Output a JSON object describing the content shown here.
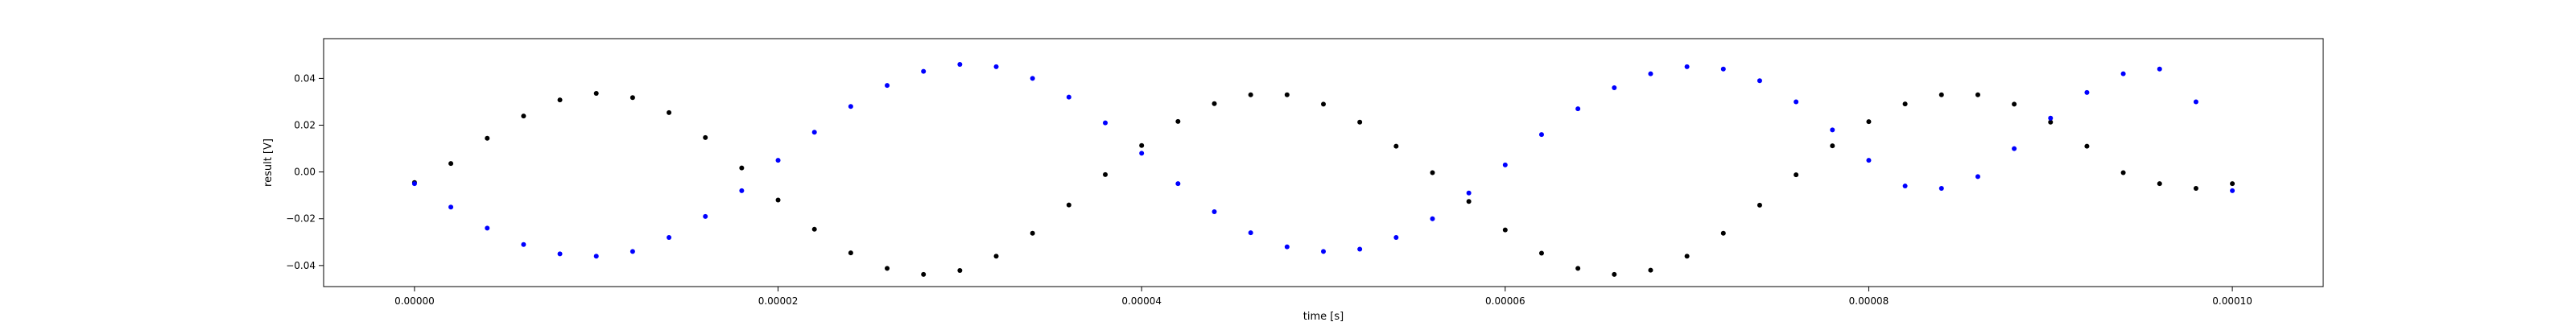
{
  "chart_data": {
    "type": "scatter",
    "title": "",
    "xlabel": "time [s]",
    "ylabel": "result [V]",
    "xlim": [
      -5e-06,
      0.000105
    ],
    "ylim": [
      -0.049,
      0.057
    ],
    "x_ticks": [
      0,
      2e-05,
      4e-05,
      6e-05,
      8e-05,
      0.0001
    ],
    "x_tick_labels": [
      "0.00000",
      "0.00002",
      "0.00004",
      "0.00006",
      "0.00008",
      "0.00010"
    ],
    "y_ticks": [
      -0.04,
      -0.02,
      0.0,
      0.02,
      0.04
    ],
    "y_tick_labels": [
      "−0.04",
      "−0.02",
      "0.00",
      "0.02",
      "0.04"
    ],
    "grid": false,
    "legend": false,
    "series": [
      {
        "color": "#000000",
        "marker": "dot",
        "x": [
          0,
          2e-06,
          4e-06,
          6e-06,
          8e-06,
          1e-05,
          1.2e-05,
          1.4e-05,
          1.6e-05,
          1.8e-05,
          2e-05,
          2.2e-05,
          2.4e-05,
          2.6e-05,
          2.8e-05,
          3e-05,
          3.2e-05,
          3.4e-05,
          3.6e-05,
          3.8e-05,
          4e-05,
          4.2e-05,
          4.4e-05,
          4.6e-05,
          4.8e-05,
          5e-05,
          5.2e-05,
          5.4e-05,
          5.6e-05,
          5.8e-05,
          6e-05,
          6.2e-05,
          6.4e-05,
          6.6e-05,
          6.8e-05,
          7e-05,
          7.2e-05,
          7.4e-05,
          7.6e-05,
          7.8e-05,
          8e-05,
          8.2e-05,
          8.4e-05,
          8.6e-05,
          8.8e-05,
          9e-05,
          9.2e-05,
          9.4e-05,
          9.6e-05,
          9.8e-05,
          0.0001
        ],
        "y": [
          -0.0045,
          0.0036,
          0.0144,
          0.0239,
          0.0308,
          0.0336,
          0.0318,
          0.0254,
          0.0147,
          0.0017,
          -0.012,
          -0.0245,
          -0.0346,
          -0.0412,
          -0.0438,
          -0.0421,
          -0.036,
          -0.0262,
          -0.0141,
          -0.0011,
          0.0113,
          0.0216,
          0.0292,
          0.033,
          0.033,
          0.029,
          0.0213,
          0.011,
          -0.0003,
          -0.0126,
          -0.0248,
          -0.0347,
          -0.0412,
          -0.0438,
          -0.042,
          -0.036,
          -0.0262,
          -0.0142,
          -0.0012,
          0.0112,
          0.0215,
          0.0291,
          0.033,
          0.033,
          0.029,
          0.0213,
          0.011,
          -0.0003,
          -0.005,
          -0.007,
          -0.005
        ]
      },
      {
        "color": "#0000ff",
        "marker": "dot",
        "x": [
          0,
          2e-06,
          4e-06,
          6e-06,
          8e-06,
          1e-05,
          1.2e-05,
          1.4e-05,
          1.6e-05,
          1.8e-05,
          2e-05,
          2.2e-05,
          2.4e-05,
          2.6e-05,
          2.8e-05,
          3e-05,
          3.2e-05,
          3.4e-05,
          3.6e-05,
          3.8e-05,
          4e-05,
          4.2e-05,
          4.4e-05,
          4.6e-05,
          4.8e-05,
          5e-05,
          5.2e-05,
          5.4e-05,
          5.6e-05,
          5.8e-05,
          6e-05,
          6.2e-05,
          6.4e-05,
          6.6e-05,
          6.8e-05,
          7e-05,
          7.2e-05,
          7.4e-05,
          7.6e-05,
          7.8e-05,
          8e-05,
          8.2e-05,
          8.4e-05,
          8.6e-05,
          8.8e-05,
          9e-05,
          9.2e-05,
          9.4e-05,
          9.6e-05,
          9.8e-05,
          0.0001
        ],
        "y": [
          -0.005,
          -0.015,
          -0.024,
          -0.031,
          -0.035,
          -0.036,
          -0.034,
          -0.028,
          -0.019,
          -0.008,
          0.005,
          0.017,
          0.028,
          0.037,
          0.043,
          0.046,
          0.045,
          0.04,
          0.032,
          0.021,
          0.008,
          -0.005,
          -0.017,
          -0.026,
          -0.032,
          -0.034,
          -0.033,
          -0.028,
          -0.02,
          -0.009,
          0.003,
          0.016,
          0.027,
          0.036,
          0.042,
          0.045,
          0.044,
          0.039,
          0.03,
          0.018,
          0.005,
          -0.006,
          -0.007,
          -0.002,
          0.01,
          0.023,
          0.034,
          0.042,
          0.044,
          0.03,
          -0.008
        ]
      }
    ]
  }
}
